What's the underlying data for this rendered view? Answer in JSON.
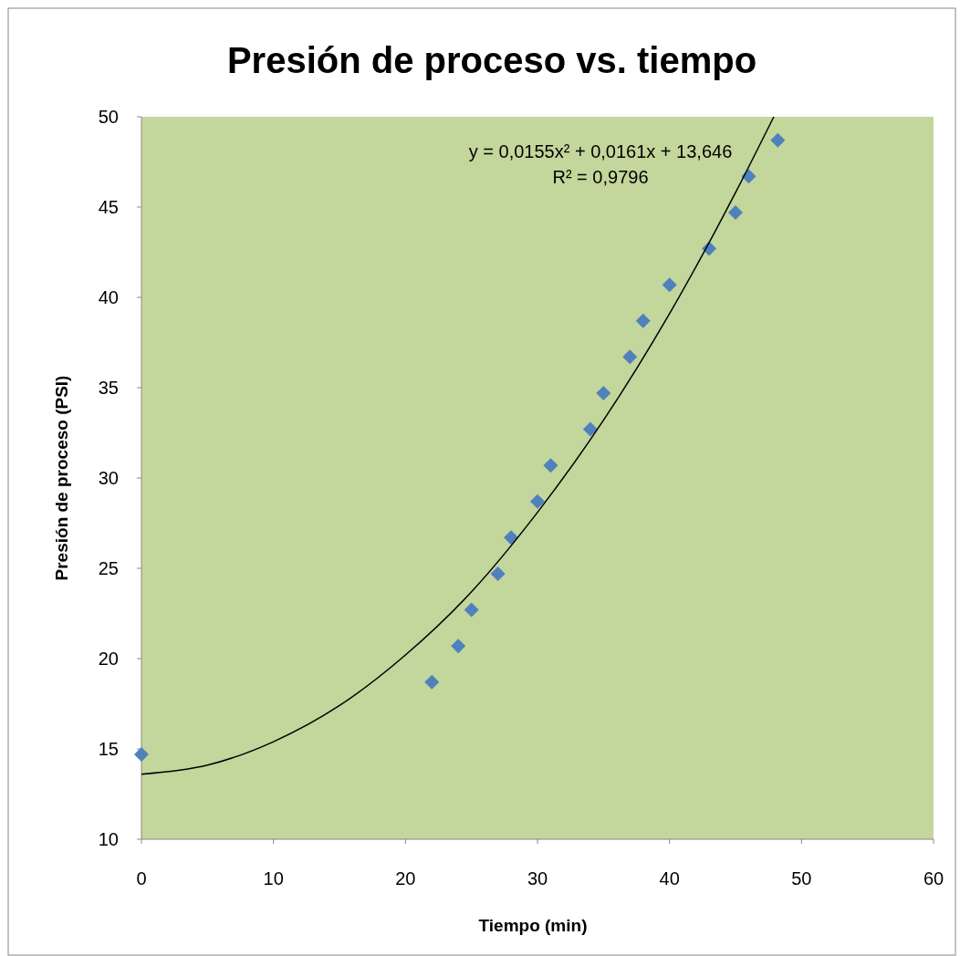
{
  "chart_data": {
    "type": "scatter",
    "title": "Presión de proceso vs. tiempo",
    "xlabel": "Tiempo (min)",
    "ylabel": "Presión de proceso (PSI)",
    "xlim": [
      0,
      60
    ],
    "xticks": [
      0,
      10,
      20,
      30,
      40,
      50,
      60
    ],
    "ylim": [
      10,
      50
    ],
    "yticks": [
      10,
      15,
      20,
      25,
      30,
      35,
      40,
      45,
      50
    ],
    "grid": false,
    "marker": "diamond",
    "annotations": [
      "y = 0,0155x² + 0,0161x + 13,646",
      "R² = 0,9796"
    ],
    "series": [
      {
        "color": "#4f81bd",
        "x": [
          0,
          22,
          24,
          25,
          27,
          28,
          30,
          31,
          34,
          35,
          37,
          38,
          40,
          43,
          45,
          46,
          48.2
        ],
        "values": [
          14.7,
          18.7,
          20.7,
          22.7,
          24.7,
          26.7,
          28.7,
          30.7,
          32.7,
          34.7,
          36.7,
          38.7,
          40.7,
          42.7,
          44.7,
          46.7,
          48.7
        ]
      },
      {
        "type": "line",
        "color": "#000000",
        "line_style": "solid",
        "marker": "none",
        "x": [
          0,
          5,
          10,
          15,
          20,
          25,
          30,
          35,
          40,
          45,
          47.9
        ],
        "values": [
          13.6,
          14.1,
          15.4,
          17.4,
          20.2,
          23.7,
          28.1,
          33.2,
          39.1,
          45.8,
          50.0
        ]
      }
    ]
  }
}
